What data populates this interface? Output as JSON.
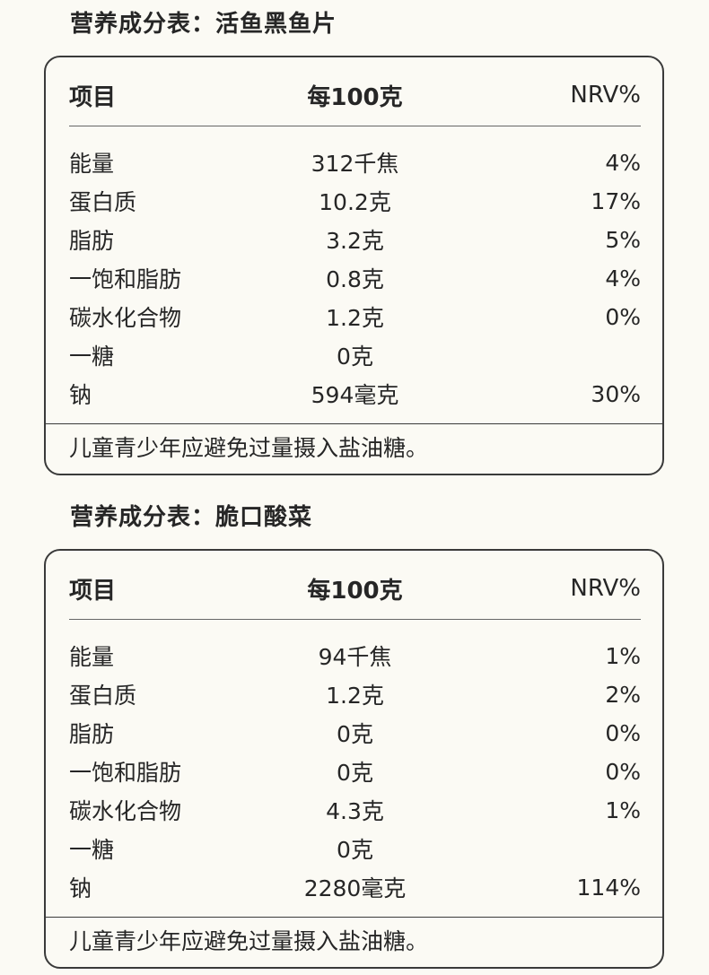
{
  "tables": [
    {
      "title": "营养成分表：活鱼黑鱼片",
      "headers": {
        "item": "项目",
        "per100": "每100克",
        "nrv": "NRV%"
      },
      "rows": [
        {
          "item": "能量",
          "value": "312千焦",
          "nrv": "4%"
        },
        {
          "item": "蛋白质",
          "value": "10.2克",
          "nrv": "17%"
        },
        {
          "item": "脂肪",
          "value": "3.2克",
          "nrv": "5%"
        },
        {
          "item": "一饱和脂肪",
          "value": "0.8克",
          "nrv": "4%"
        },
        {
          "item": "碳水化合物",
          "value": "1.2克",
          "nrv": "0%"
        },
        {
          "item": "一糖",
          "value": "0克",
          "nrv": ""
        },
        {
          "item": "钠",
          "value": "594毫克",
          "nrv": "30%"
        }
      ],
      "note": "儿童青少年应避免过量摄入盐油糖。"
    },
    {
      "title": "营养成分表：脆口酸菜",
      "headers": {
        "item": "项目",
        "per100": "每100克",
        "nrv": "NRV%"
      },
      "rows": [
        {
          "item": "能量",
          "value": "94千焦",
          "nrv": "1%"
        },
        {
          "item": "蛋白质",
          "value": "1.2克",
          "nrv": "2%"
        },
        {
          "item": "脂肪",
          "value": "0克",
          "nrv": "0%"
        },
        {
          "item": "一饱和脂肪",
          "value": "0克",
          "nrv": "0%"
        },
        {
          "item": "碳水化合物",
          "value": "4.3克",
          "nrv": "1%"
        },
        {
          "item": "一糖",
          "value": "0克",
          "nrv": ""
        },
        {
          "item": "钠",
          "value": "2280毫克",
          "nrv": "114%"
        }
      ],
      "note": "儿童青少年应避免过量摄入盐油糖。"
    }
  ]
}
